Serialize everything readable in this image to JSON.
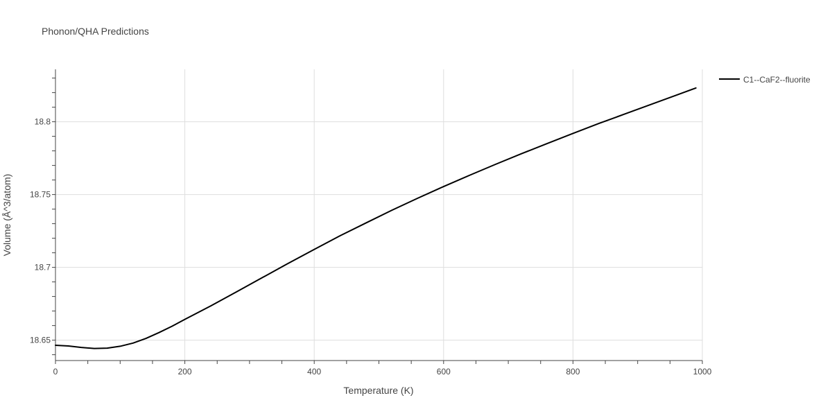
{
  "chart_data": {
    "type": "line",
    "title": "Phonon/QHA Predictions",
    "xlabel": "Temperature (K)",
    "ylabel": "Volume (Å^3/atom)",
    "xlim": [
      0,
      1000
    ],
    "ylim": [
      18.636,
      18.836
    ],
    "xticks": [
      0,
      200,
      400,
      600,
      800,
      1000
    ],
    "xtick_labels": [
      "0",
      "200",
      "400",
      "600",
      "800",
      "1000"
    ],
    "yticks": [
      18.65,
      18.7,
      18.75,
      18.8
    ],
    "ytick_labels": [
      "18.65",
      "18.7",
      "18.75",
      "18.8"
    ],
    "grid": true,
    "legend_position": "top-right",
    "series": [
      {
        "name": "C1--CaF2--fluorite",
        "color": "#000000",
        "x": [
          0,
          20,
          40,
          60,
          80,
          100,
          120,
          140,
          160,
          180,
          200,
          240,
          280,
          320,
          360,
          400,
          440,
          480,
          520,
          560,
          600,
          640,
          680,
          720,
          760,
          800,
          840,
          880,
          920,
          960,
          990
        ],
        "y": [
          18.6465,
          18.646,
          18.645,
          18.6443,
          18.6445,
          18.6458,
          18.648,
          18.6512,
          18.6552,
          18.6595,
          18.6643,
          18.6735,
          18.6832,
          18.693,
          18.7028,
          18.7123,
          18.7217,
          18.7305,
          18.7392,
          18.7475,
          18.7555,
          18.7632,
          18.7707,
          18.778,
          18.785,
          18.792,
          18.7988,
          18.8053,
          18.8118,
          18.8183,
          18.8232
        ]
      }
    ]
  }
}
